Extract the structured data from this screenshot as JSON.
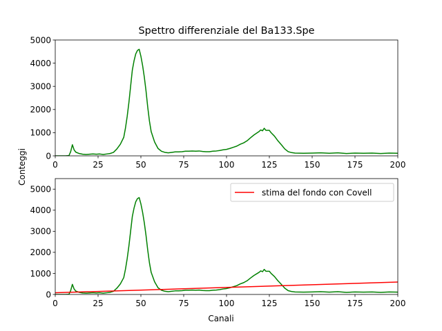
{
  "chart_data": [
    {
      "type": "line",
      "title": "Spettro differenziale del Ba133.Spe",
      "xlabel": "",
      "ylabel": "Conteggi",
      "xlim": [
        0,
        200
      ],
      "ylim": [
        0,
        5000
      ],
      "xticks": [
        0,
        25,
        50,
        75,
        100,
        125,
        150,
        175,
        200
      ],
      "yticks": [
        0,
        1000,
        2000,
        3000,
        4000,
        5000
      ],
      "grid": false,
      "series": [
        {
          "name": "",
          "color": "#008000",
          "x": [
            0,
            2,
            4,
            6,
            8,
            9,
            10,
            11,
            12,
            14,
            16,
            18,
            20,
            22,
            24,
            26,
            28,
            30,
            32,
            34,
            36,
            38,
            40,
            41,
            42,
            43,
            44,
            45,
            46,
            47,
            48,
            49,
            50,
            51,
            52,
            53,
            54,
            55,
            56,
            58,
            60,
            62,
            64,
            66,
            68,
            70,
            72,
            74,
            76,
            78,
            80,
            82,
            84,
            86,
            88,
            90,
            92,
            94,
            96,
            98,
            100,
            102,
            104,
            106,
            108,
            110,
            112,
            114,
            116,
            118,
            119,
            120,
            121,
            122,
            123,
            124,
            125,
            126,
            128,
            130,
            132,
            134,
            136,
            138,
            140,
            145,
            150,
            155,
            160,
            165,
            170,
            175,
            180,
            185,
            190,
            195,
            200
          ],
          "y": [
            0,
            0,
            0,
            0,
            10,
            180,
            480,
            260,
            160,
            100,
            70,
            60,
            70,
            80,
            70,
            80,
            60,
            80,
            100,
            150,
            300,
            500,
            800,
            1200,
            1700,
            2300,
            3000,
            3700,
            4100,
            4400,
            4550,
            4600,
            4300,
            3900,
            3400,
            2800,
            2100,
            1500,
            1050,
            600,
            320,
            200,
            150,
            130,
            150,
            170,
            170,
            180,
            200,
            200,
            210,
            200,
            210,
            190,
            180,
            180,
            200,
            210,
            230,
            260,
            280,
            320,
            370,
            420,
            500,
            560,
            650,
            780,
            900,
            1000,
            1050,
            1120,
            1080,
            1190,
            1100,
            1100,
            1100,
            1000,
            850,
            650,
            480,
            300,
            180,
            140,
            120,
            110,
            120,
            130,
            110,
            130,
            100,
            120,
            110,
            120,
            100,
            120,
            110
          ]
        }
      ]
    },
    {
      "type": "line",
      "title": "",
      "xlabel": "Canali",
      "ylabel": "",
      "xlim": [
        0,
        200
      ],
      "ylim": [
        0,
        5500
      ],
      "xticks": [
        0,
        25,
        50,
        75,
        100,
        125,
        150,
        175,
        200
      ],
      "yticks": [
        0,
        1000,
        2000,
        3000,
        4000,
        5000
      ],
      "grid": false,
      "legend_position": "top-right",
      "series": [
        {
          "name": "",
          "color": "#008000",
          "x": [
            0,
            2,
            4,
            6,
            8,
            9,
            10,
            11,
            12,
            14,
            16,
            18,
            20,
            22,
            24,
            26,
            28,
            30,
            32,
            34,
            36,
            38,
            40,
            41,
            42,
            43,
            44,
            45,
            46,
            47,
            48,
            49,
            50,
            51,
            52,
            53,
            54,
            55,
            56,
            58,
            60,
            62,
            64,
            66,
            68,
            70,
            72,
            74,
            76,
            78,
            80,
            82,
            84,
            86,
            88,
            90,
            92,
            94,
            96,
            98,
            100,
            102,
            104,
            106,
            108,
            110,
            112,
            114,
            116,
            118,
            119,
            120,
            121,
            122,
            123,
            124,
            125,
            126,
            128,
            130,
            132,
            134,
            136,
            138,
            140,
            145,
            150,
            155,
            160,
            165,
            170,
            175,
            180,
            185,
            190,
            195,
            200
          ],
          "y": [
            0,
            0,
            0,
            0,
            10,
            180,
            480,
            260,
            160,
            100,
            70,
            60,
            70,
            80,
            70,
            80,
            60,
            80,
            100,
            150,
            300,
            500,
            800,
            1200,
            1700,
            2300,
            3000,
            3700,
            4100,
            4400,
            4550,
            4600,
            4300,
            3900,
            3400,
            2800,
            2100,
            1500,
            1050,
            600,
            320,
            200,
            150,
            130,
            150,
            170,
            170,
            180,
            200,
            200,
            210,
            200,
            210,
            190,
            180,
            180,
            200,
            210,
            230,
            260,
            280,
            320,
            370,
            420,
            500,
            560,
            650,
            780,
            900,
            1000,
            1050,
            1120,
            1080,
            1190,
            1100,
            1100,
            1100,
            1000,
            850,
            650,
            480,
            300,
            180,
            140,
            120,
            110,
            120,
            130,
            110,
            130,
            100,
            120,
            110,
            120,
            100,
            120,
            110
          ]
        },
        {
          "name": "stima del fondo con Covell",
          "color": "#ff0000",
          "x": [
            0,
            200
          ],
          "y": [
            80,
            590
          ]
        }
      ]
    }
  ]
}
